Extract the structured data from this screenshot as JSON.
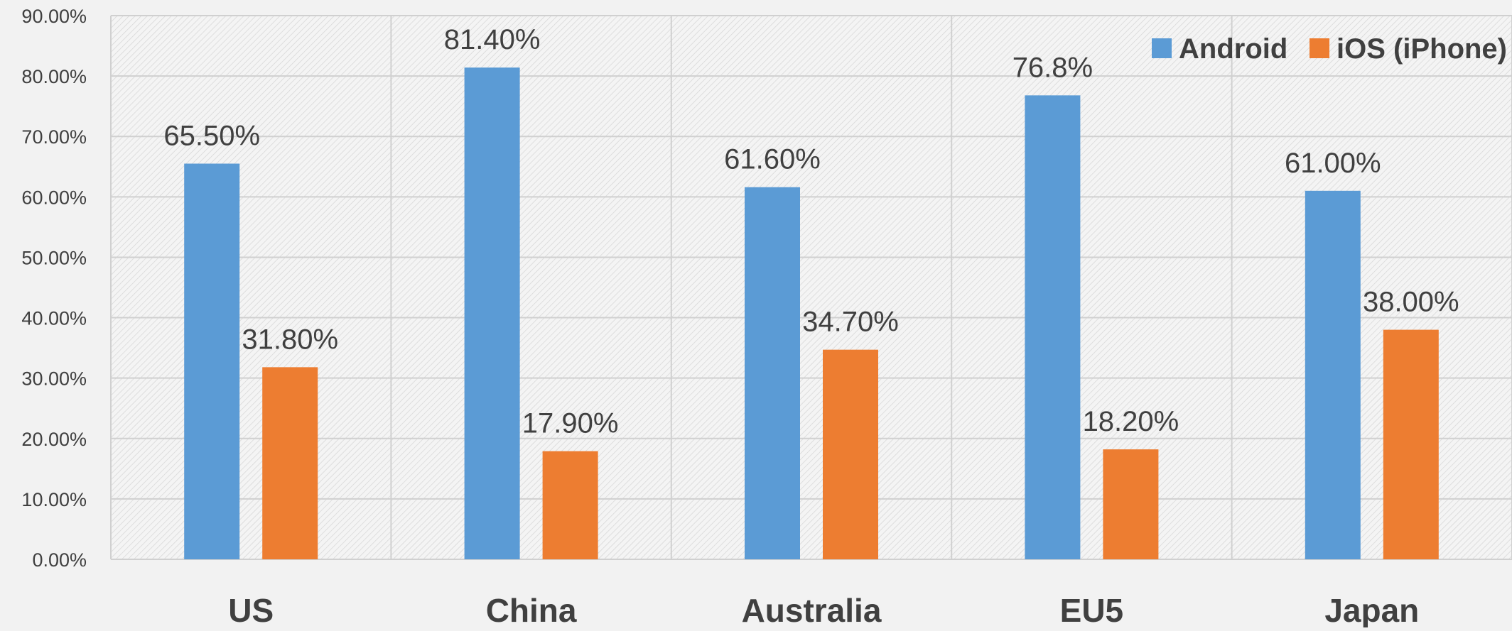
{
  "chart_data": {
    "type": "bar",
    "title": "",
    "xlabel": "",
    "ylabel": "",
    "categories": [
      "US",
      "China",
      "Australia",
      "EU5",
      "Japan"
    ],
    "series": [
      {
        "name": "Android",
        "color": "#5b9bd5",
        "values": [
          65.5,
          81.4,
          61.6,
          76.8,
          61.0
        ],
        "labels": [
          "65.50%",
          "81.40%",
          "61.60%",
          "76.8%",
          "61.00%"
        ]
      },
      {
        "name": "iOS (iPhone)",
        "color": "#ed7d31",
        "values": [
          31.8,
          17.9,
          34.7,
          18.2,
          38.0
        ],
        "labels": [
          "31.80%",
          "17.90%",
          "34.70%",
          "18.20%",
          "38.00%"
        ]
      }
    ],
    "ylim": [
      0,
      90
    ],
    "yticks": [
      "0.00%",
      "10.00%",
      "20.00%",
      "30.00%",
      "40.00%",
      "50.00%",
      "60.00%",
      "70.00%",
      "80.00%",
      "90.00%"
    ],
    "grid": true,
    "legend_position": "top-right",
    "plot_background": "hatched"
  }
}
